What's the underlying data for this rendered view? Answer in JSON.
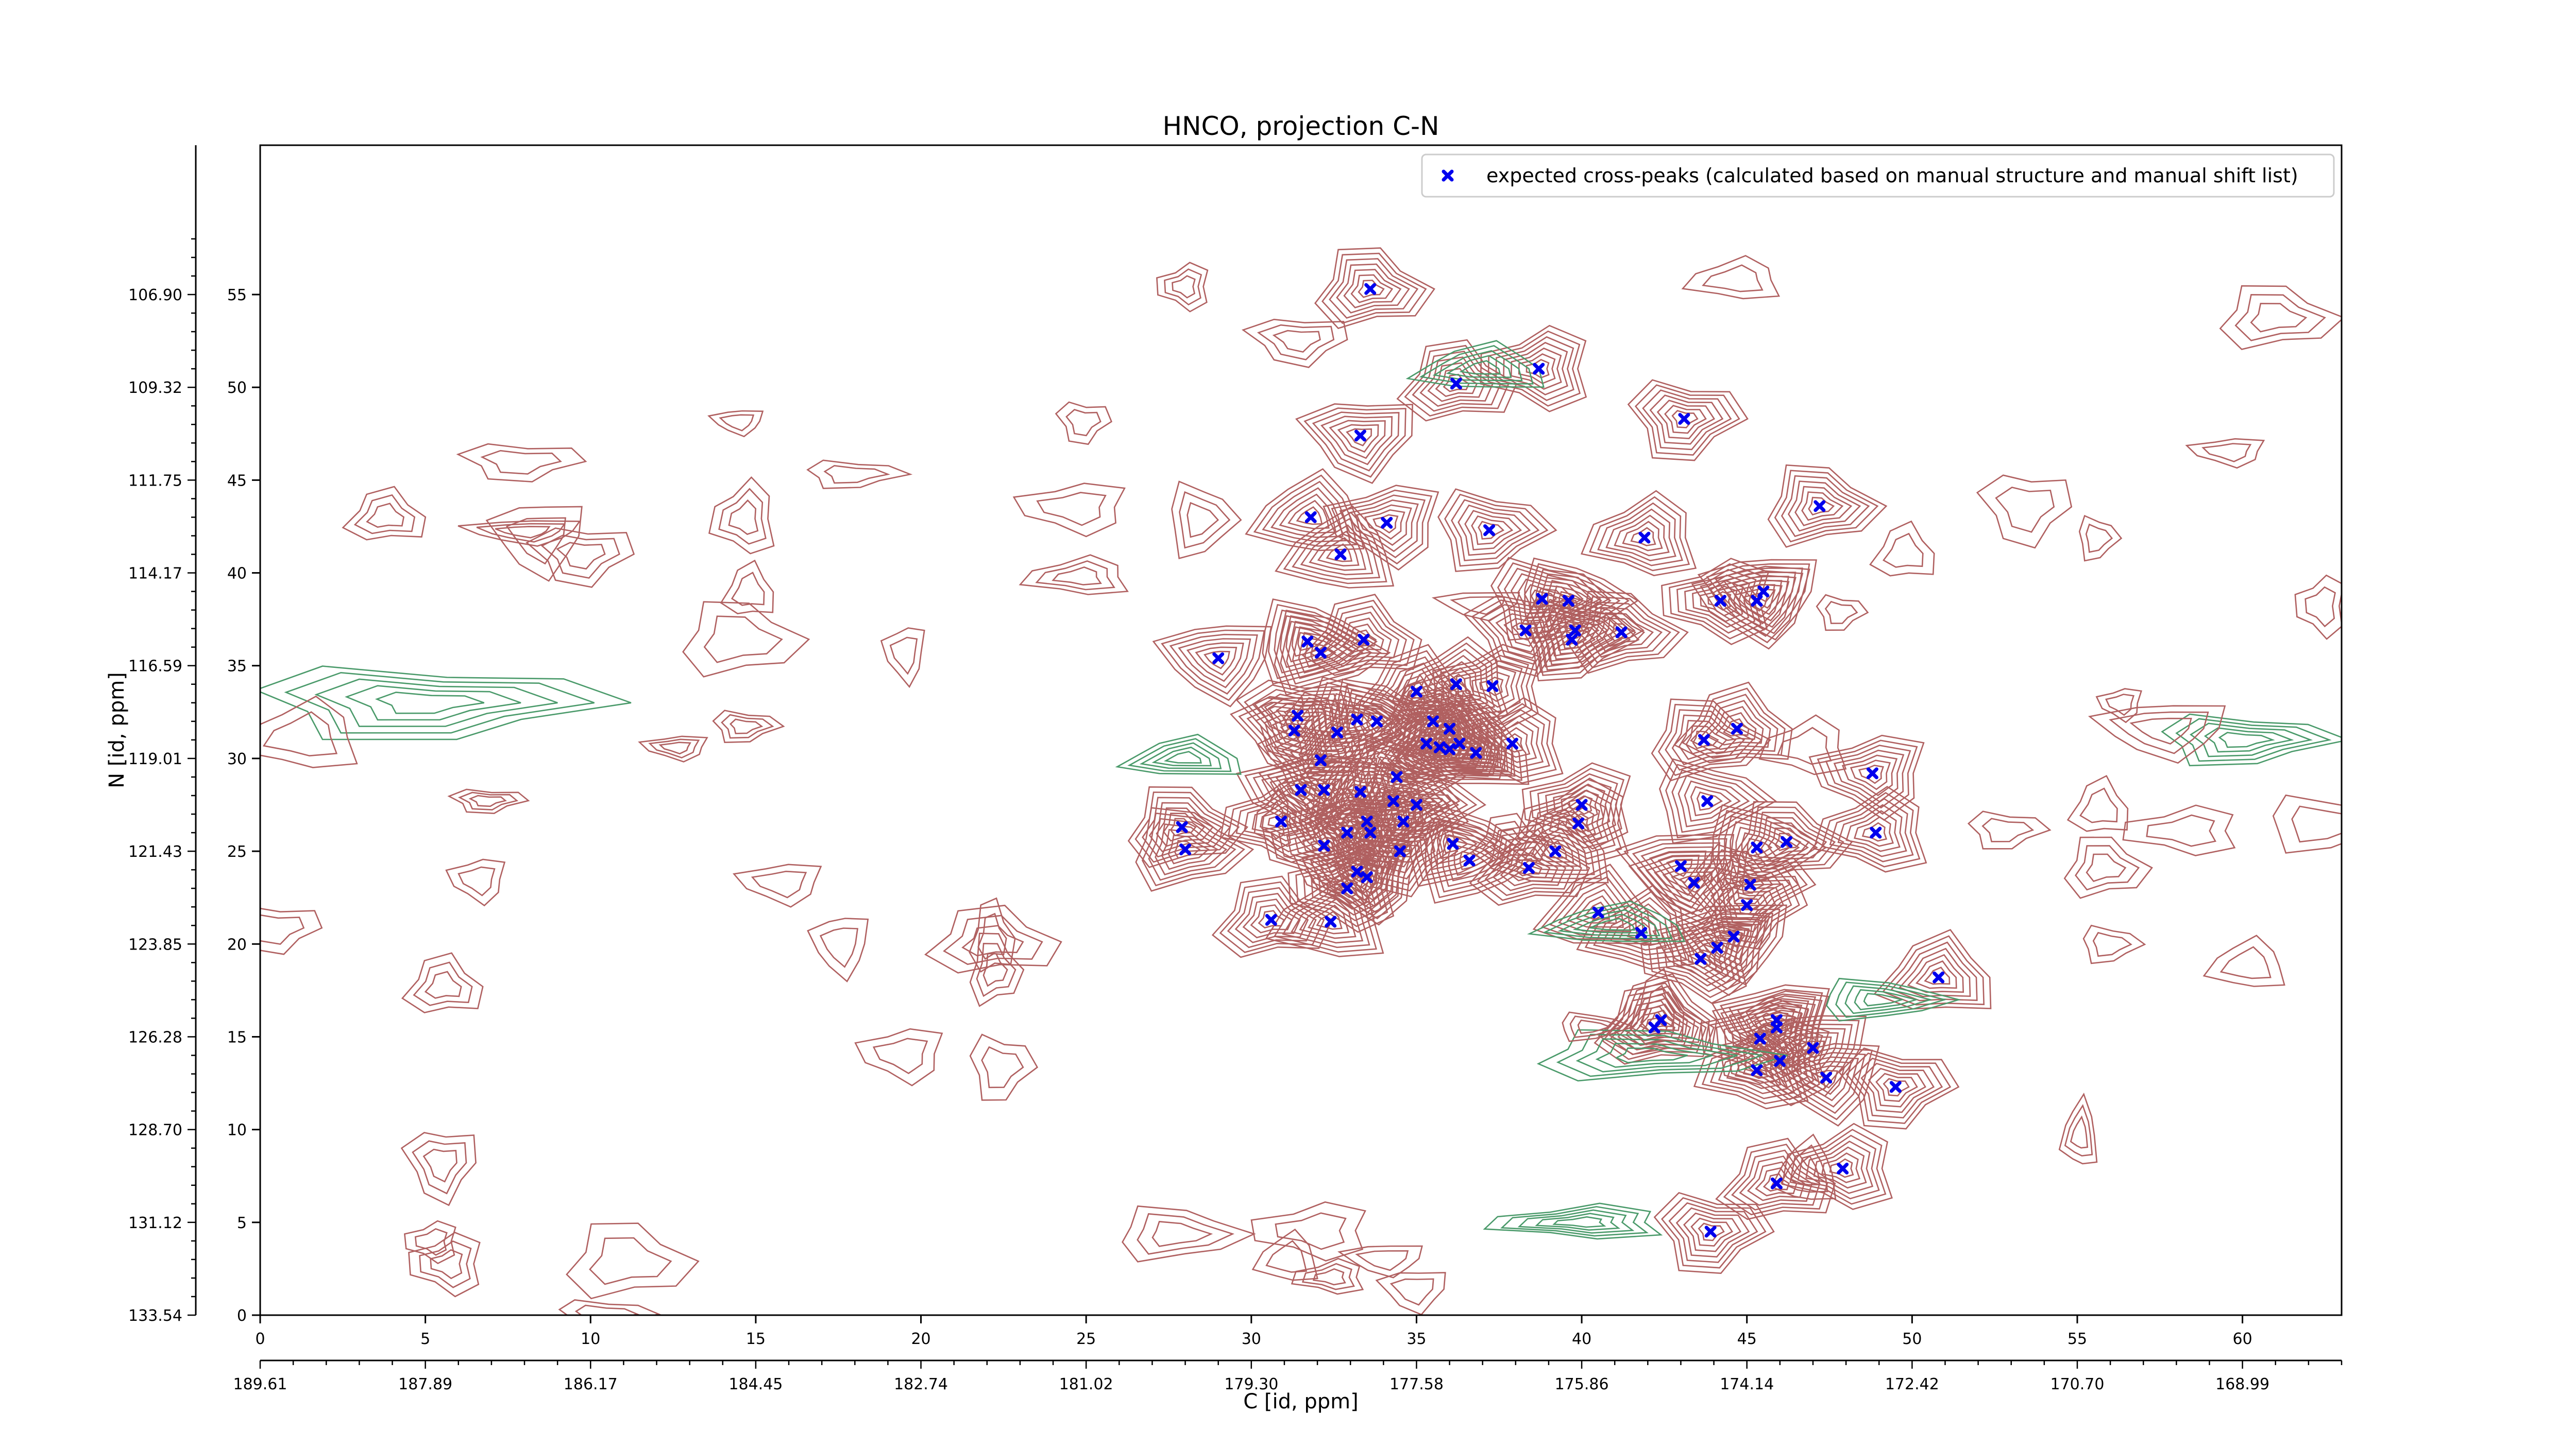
{
  "chart_data": {
    "type": "scatter",
    "title": "HNCO, projection C-N",
    "xlabel": "C [id, ppm]",
    "ylabel": "N [id, ppm]",
    "xlim": [
      0,
      63
    ],
    "ylim": [
      0,
      55
    ],
    "x_ticks": [
      0,
      5,
      10,
      15,
      20,
      25,
      30,
      35,
      40,
      45,
      50,
      55,
      60
    ],
    "x_tick_labels": [
      "0",
      "5",
      "10",
      "15",
      "20",
      "25",
      "30",
      "35",
      "40",
      "45",
      "50",
      "55",
      "60"
    ],
    "x_ppm_ticks": [
      0,
      5,
      10,
      15,
      20,
      25,
      30,
      35,
      40,
      45,
      50,
      55,
      60
    ],
    "x_ppm_labels": [
      "189.61",
      "187.89",
      "186.17",
      "184.45",
      "182.74",
      "181.02",
      "179.30",
      "177.58",
      "175.86",
      "174.14",
      "172.42",
      "170.70",
      "168.99"
    ],
    "y_ticks": [
      0,
      5,
      10,
      15,
      20,
      25,
      30,
      35,
      40,
      45,
      50,
      55
    ],
    "y_tick_labels": [
      "0",
      "5",
      "10",
      "15",
      "20",
      "25",
      "30",
      "35",
      "40",
      "45",
      "50",
      "55"
    ],
    "y_ppm_ticks": [
      0,
      5,
      10,
      15,
      20,
      25,
      30,
      35,
      40,
      45,
      50,
      55
    ],
    "y_ppm_labels": [
      "133.54",
      "131.12",
      "128.70",
      "126.28",
      "123.85",
      "121.43",
      "119.01",
      "116.59",
      "114.17",
      "111.75",
      "109.32",
      "106.90"
    ],
    "legend": {
      "position": "top-right",
      "label": "expected cross-peaks (calculated based on manual structure and manual shift list)"
    },
    "colors": {
      "positive_contour": "#b06060",
      "negative_contour": "#4a9a6a",
      "marker": "#0000ee"
    },
    "series": [
      {
        "marker": "x",
        "points": [
          [
            33.6,
            55.3
          ],
          [
            36.2,
            50.2
          ],
          [
            38.7,
            51.0
          ],
          [
            33.3,
            47.4
          ],
          [
            43.1,
            48.3
          ],
          [
            31.8,
            43.0
          ],
          [
            32.7,
            41.0
          ],
          [
            34.1,
            42.7
          ],
          [
            37.2,
            42.3
          ],
          [
            41.9,
            41.9
          ],
          [
            47.2,
            43.6
          ],
          [
            38.8,
            38.6
          ],
          [
            39.6,
            38.5
          ],
          [
            44.2,
            38.5
          ],
          [
            45.3,
            38.5
          ],
          [
            45.5,
            39.0
          ],
          [
            38.3,
            36.9
          ],
          [
            39.7,
            36.4
          ],
          [
            39.8,
            36.9
          ],
          [
            41.2,
            36.8
          ],
          [
            29.0,
            35.4
          ],
          [
            31.7,
            36.3
          ],
          [
            32.1,
            35.7
          ],
          [
            33.4,
            36.4
          ],
          [
            35.0,
            33.6
          ],
          [
            36.2,
            34.0
          ],
          [
            37.3,
            33.9
          ],
          [
            31.4,
            32.3
          ],
          [
            31.3,
            31.5
          ],
          [
            32.6,
            31.4
          ],
          [
            33.2,
            32.1
          ],
          [
            33.8,
            32.0
          ],
          [
            35.5,
            32.0
          ],
          [
            36.0,
            31.6
          ],
          [
            35.3,
            30.8
          ],
          [
            35.7,
            30.6
          ],
          [
            36.0,
            30.5
          ],
          [
            36.3,
            30.8
          ],
          [
            36.8,
            30.3
          ],
          [
            37.9,
            30.8
          ],
          [
            43.7,
            31.0
          ],
          [
            44.7,
            31.6
          ],
          [
            32.1,
            29.9
          ],
          [
            31.5,
            28.3
          ],
          [
            32.2,
            28.3
          ],
          [
            33.3,
            28.2
          ],
          [
            34.4,
            29.0
          ],
          [
            34.3,
            27.7
          ],
          [
            35.0,
            27.5
          ],
          [
            34.6,
            26.6
          ],
          [
            40.0,
            27.5
          ],
          [
            48.8,
            29.2
          ],
          [
            27.9,
            26.3
          ],
          [
            30.9,
            26.6
          ],
          [
            32.9,
            26.0
          ],
          [
            33.5,
            26.6
          ],
          [
            33.6,
            26.0
          ],
          [
            32.2,
            25.3
          ],
          [
            34.5,
            25.0
          ],
          [
            36.1,
            25.4
          ],
          [
            36.6,
            24.5
          ],
          [
            38.4,
            24.1
          ],
          [
            39.2,
            25.0
          ],
          [
            39.9,
            26.5
          ],
          [
            43.8,
            27.7
          ],
          [
            45.3,
            25.2
          ],
          [
            46.2,
            25.5
          ],
          [
            28.0,
            25.1
          ],
          [
            33.2,
            23.9
          ],
          [
            33.5,
            23.6
          ],
          [
            32.9,
            23.0
          ],
          [
            43.0,
            24.2
          ],
          [
            43.4,
            23.3
          ],
          [
            45.1,
            23.2
          ],
          [
            45.0,
            22.1
          ],
          [
            30.6,
            21.3
          ],
          [
            32.4,
            21.2
          ],
          [
            40.5,
            21.7
          ],
          [
            41.8,
            20.6
          ],
          [
            43.6,
            19.2
          ],
          [
            44.1,
            19.8
          ],
          [
            44.6,
            20.4
          ],
          [
            50.8,
            18.2
          ],
          [
            42.2,
            15.5
          ],
          [
            42.4,
            15.9
          ],
          [
            45.9,
            15.5
          ],
          [
            45.9,
            15.9
          ],
          [
            45.4,
            14.9
          ],
          [
            47.0,
            14.4
          ],
          [
            45.3,
            13.2
          ],
          [
            46.0,
            13.7
          ],
          [
            47.4,
            12.8
          ],
          [
            49.5,
            12.3
          ],
          [
            47.9,
            7.9
          ],
          [
            45.9,
            7.1
          ],
          [
            43.9,
            4.5
          ],
          [
            48.9,
            26.0
          ]
        ]
      }
    ]
  }
}
